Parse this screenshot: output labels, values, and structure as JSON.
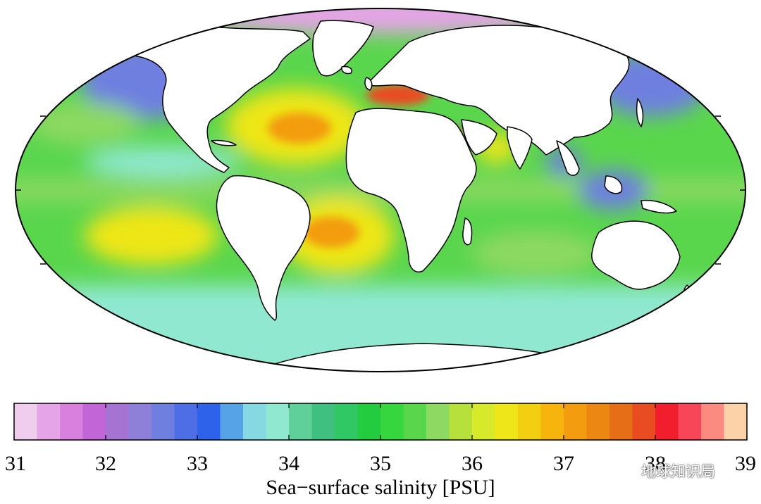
{
  "colorbar": {
    "title": "Sea−surface salinity [PSU]",
    "ticks": [
      "31",
      "32",
      "33",
      "34",
      "35",
      "36",
      "37",
      "38",
      "39"
    ],
    "range": [
      31,
      39
    ],
    "colors": [
      "#f0cdee",
      "#e6a4e8",
      "#d980df",
      "#c266d7",
      "#a574d3",
      "#8e7fd9",
      "#6e7fe0",
      "#4e6ee6",
      "#2f62ea",
      "#56a3e8",
      "#86d9e3",
      "#8fe8cf",
      "#5fd09a",
      "#3fc080",
      "#30c865",
      "#22cc3e",
      "#35d63e",
      "#5ad64d",
      "#8dd961",
      "#b8e03c",
      "#d6ea2a",
      "#eee618",
      "#f3cf12",
      "#f7b40c",
      "#f39c10",
      "#ec8812",
      "#e66e16",
      "#ea4c22",
      "#f21d2d",
      "#f64658",
      "#fb8a80",
      "#fcd3a8"
    ]
  },
  "map": {
    "ocean_colors": {
      "base": "#5ad64d",
      "equatorial_band": "#8dd961",
      "subtropical_high": "#eee618",
      "subtropical_peak": "#f39c10",
      "mediterranean": "#ea4c22",
      "red_sea": "#f21d2d",
      "southern_ocean": "#8fe8cf",
      "subpolar": "#6e7fe0",
      "polar_fresh": "#e6a4e8",
      "land": "#ffffff"
    }
  },
  "watermark": {
    "text": "地球知识局",
    "icon": "wechat-icon"
  }
}
